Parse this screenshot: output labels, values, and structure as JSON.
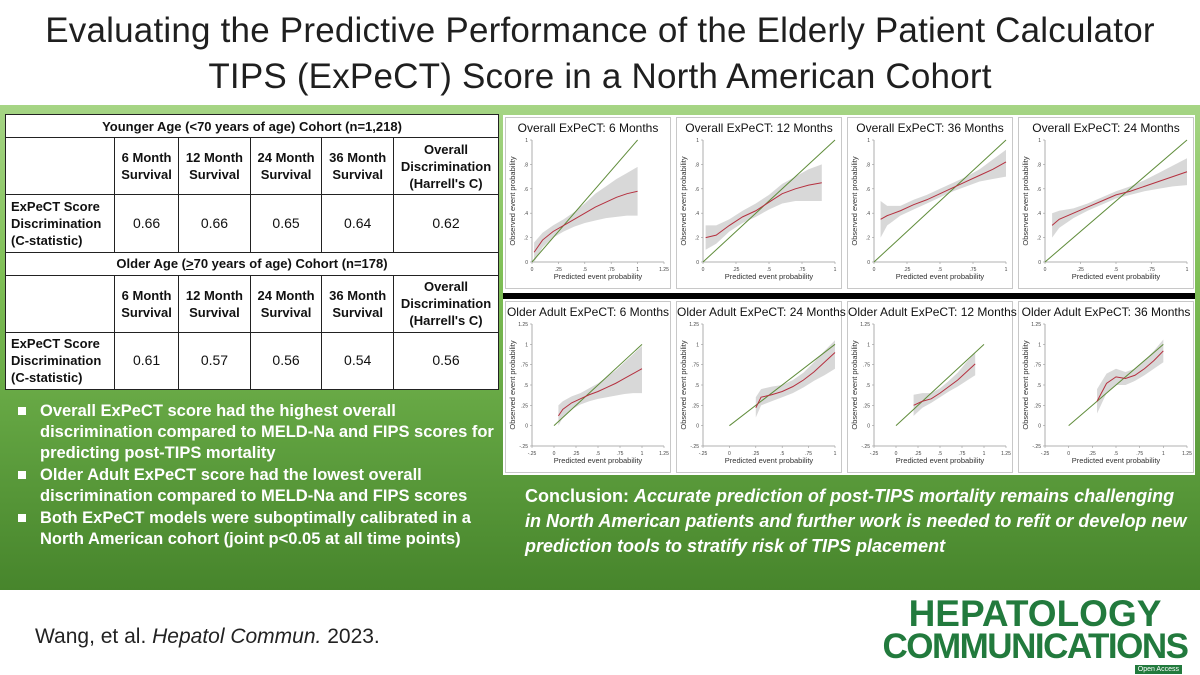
{
  "title_line1": "Evaluating the Predictive Performance of the Elderly Patient Calculator",
  "title_line2": "TIPS (ExPeCT) Score in a North American Cohort",
  "table": {
    "younger_caption": "Younger Age (<70 years of age) Cohort (n=1,218)",
    "older_caption_pre": "Older Age (",
    "older_caption_sym": ">",
    "older_caption_post": "70 years of age) Cohort (n=178)",
    "col_headers": [
      [
        "6 Month",
        "Survival"
      ],
      [
        "12 Month",
        "Survival"
      ],
      [
        "24 Month",
        "Survival"
      ],
      [
        "36 Month",
        "Survival"
      ],
      [
        "Overall",
        "Discrimination",
        "(Harrell's C)"
      ]
    ],
    "row_label": [
      "ExPeCT Score",
      "Discrimination",
      "(C-statistic)"
    ],
    "younger_values": [
      "0.66",
      "0.66",
      "0.65",
      "0.64",
      "0.62"
    ],
    "older_values": [
      "0.61",
      "0.57",
      "0.56",
      "0.54",
      "0.56"
    ]
  },
  "bullets": [
    "Overall ExPeCT score had the highest overall discrimination compared to MELD-Na and FIPS scores for predicting post-TIPS mortality",
    "Older Adult ExPeCT score had the lowest overall discrimination compared to MELD-Na and FIPS scores",
    "Both ExPeCT models were suboptimally calibrated in a North American cohort (joint p<0.05 at all time points)"
  ],
  "conclusion_label": "Conclusion:",
  "conclusion_text": "Accurate prediction of post-TIPS mortality remains challenging in North American patients and further work is needed to refit or develop new prediction tools to stratify risk of TIPS placement",
  "citation_authors": "Wang, et al. ",
  "citation_journal": "Hepatol Commun.",
  "citation_year": " 2023.",
  "logo_line1": "HEPATOLOGY",
  "logo_line2": "COMMUNICATIONS",
  "logo_badge": "Open Access",
  "colors": {
    "observed": "#b5303f",
    "reference": "#5f8c3a",
    "band": "#d8d8d8",
    "accent": "#227a3d"
  },
  "chart_data": [
    {
      "type": "line",
      "title": "Overall ExPeCT: 6 Months",
      "xlabel": "Predicted event probability",
      "ylabel": "Observed event probability",
      "xlim": [
        0,
        1.25
      ],
      "ylim": [
        0,
        1
      ],
      "xticks": [
        "0",
        ".25",
        ".5",
        ".75",
        "1",
        "1.25"
      ],
      "yticks": [
        "0",
        ".2",
        ".4",
        ".6",
        ".8",
        "1"
      ],
      "series": [
        {
          "x": [
            0.02,
            0.1,
            0.2,
            0.3,
            0.4,
            0.5,
            0.6,
            0.7,
            0.8,
            0.9,
            1.0
          ],
          "y": [
            0.08,
            0.18,
            0.25,
            0.3,
            0.35,
            0.4,
            0.45,
            0.49,
            0.53,
            0.56,
            0.58
          ],
          "lo": [
            0.0,
            0.12,
            0.2,
            0.25,
            0.29,
            0.32,
            0.34,
            0.36,
            0.37,
            0.38,
            0.38
          ],
          "hi": [
            0.16,
            0.24,
            0.3,
            0.35,
            0.41,
            0.48,
            0.56,
            0.62,
            0.68,
            0.73,
            0.78
          ]
        }
      ]
    },
    {
      "type": "line",
      "title": "Overall ExPeCT: 12 Months",
      "xlabel": "Predicted event probability",
      "ylabel": "Observed event probability",
      "xlim": [
        0,
        1
      ],
      "ylim": [
        0,
        1
      ],
      "xticks": [
        "0",
        ".25",
        ".5",
        ".75",
        "1"
      ],
      "yticks": [
        "0",
        ".2",
        ".4",
        ".6",
        ".8",
        "1"
      ],
      "series": [
        {
          "x": [
            0.02,
            0.1,
            0.2,
            0.3,
            0.4,
            0.5,
            0.6,
            0.7,
            0.8,
            0.9
          ],
          "y": [
            0.2,
            0.22,
            0.3,
            0.37,
            0.42,
            0.49,
            0.56,
            0.6,
            0.63,
            0.65
          ],
          "lo": [
            0.1,
            0.15,
            0.25,
            0.32,
            0.37,
            0.43,
            0.48,
            0.5,
            0.5,
            0.5
          ],
          "hi": [
            0.3,
            0.3,
            0.35,
            0.42,
            0.48,
            0.55,
            0.64,
            0.7,
            0.76,
            0.8
          ]
        }
      ]
    },
    {
      "type": "line",
      "title": "Overall ExPeCT: 36 Months",
      "xlabel": "Predicted event probability",
      "ylabel": "Observed event probability",
      "xlim": [
        0,
        1
      ],
      "ylim": [
        0,
        1
      ],
      "xticks": [
        "0",
        ".25",
        ".5",
        ".75",
        "1"
      ],
      "yticks": [
        "0",
        ".2",
        ".4",
        ".6",
        ".8",
        "1"
      ],
      "series": [
        {
          "x": [
            0.05,
            0.1,
            0.2,
            0.3,
            0.4,
            0.5,
            0.6,
            0.7,
            0.8,
            0.9,
            1.0
          ],
          "y": [
            0.35,
            0.38,
            0.42,
            0.47,
            0.51,
            0.56,
            0.61,
            0.66,
            0.71,
            0.76,
            0.82
          ],
          "lo": [
            0.2,
            0.3,
            0.38,
            0.43,
            0.48,
            0.53,
            0.58,
            0.62,
            0.66,
            0.68,
            0.7
          ],
          "hi": [
            0.5,
            0.46,
            0.46,
            0.51,
            0.55,
            0.6,
            0.65,
            0.7,
            0.76,
            0.84,
            0.92
          ]
        }
      ]
    },
    {
      "type": "line",
      "title": "Overall ExPeCT: 24 Months",
      "xlabel": "Predicted event probability",
      "ylabel": "Observed event probability",
      "xlim": [
        0,
        1
      ],
      "ylim": [
        0,
        1
      ],
      "xticks": [
        "0",
        ".25",
        ".5",
        ".75",
        "1"
      ],
      "yticks": [
        "0",
        ".2",
        ".4",
        ".6",
        ".8",
        "1"
      ],
      "series": [
        {
          "x": [
            0.05,
            0.1,
            0.2,
            0.3,
            0.4,
            0.5,
            0.6,
            0.7,
            0.8,
            0.9,
            1.0
          ],
          "y": [
            0.3,
            0.35,
            0.4,
            0.45,
            0.5,
            0.55,
            0.58,
            0.62,
            0.66,
            0.7,
            0.74
          ],
          "lo": [
            0.2,
            0.28,
            0.36,
            0.42,
            0.47,
            0.52,
            0.55,
            0.58,
            0.6,
            0.62,
            0.63
          ],
          "hi": [
            0.4,
            0.42,
            0.44,
            0.48,
            0.53,
            0.58,
            0.62,
            0.67,
            0.73,
            0.79,
            0.85
          ]
        }
      ]
    },
    {
      "type": "line",
      "title": "Older Adult ExPeCT: 6 Months",
      "xlabel": "Predicted event probability",
      "ylabel": "Observed event probability",
      "xlim": [
        -0.25,
        1.25
      ],
      "ylim": [
        -0.25,
        1.25
      ],
      "xticks": [
        "-.25",
        "0",
        ".25",
        ".5",
        ".75",
        "1",
        "1.25"
      ],
      "yticks": [
        "-.25",
        "0",
        ".25",
        ".5",
        ".75",
        "1",
        "1.25"
      ],
      "series": [
        {
          "x": [
            0.05,
            0.1,
            0.2,
            0.3,
            0.4,
            0.5,
            0.6,
            0.7,
            0.8,
            0.9,
            1.0
          ],
          "y": [
            0.12,
            0.2,
            0.28,
            0.33,
            0.38,
            0.42,
            0.47,
            0.52,
            0.58,
            0.64,
            0.7
          ],
          "lo": [
            0.0,
            0.1,
            0.2,
            0.26,
            0.3,
            0.33,
            0.35,
            0.37,
            0.39,
            0.4,
            0.4
          ],
          "hi": [
            0.25,
            0.3,
            0.36,
            0.4,
            0.46,
            0.52,
            0.6,
            0.68,
            0.78,
            0.88,
            0.98
          ]
        }
      ]
    },
    {
      "type": "line",
      "title": "Older Adult ExPeCT: 24 Months",
      "xlabel": "Predicted event probability",
      "ylabel": "Observed event probability",
      "xlim": [
        -0.25,
        1
      ],
      "ylim": [
        -0.25,
        1.25
      ],
      "xticks": [
        "-.25",
        "0",
        ".25",
        ".5",
        ".75",
        "1"
      ],
      "yticks": [
        "-.25",
        "0",
        ".25",
        ".5",
        ".75",
        "1",
        "1.25"
      ],
      "series": [
        {
          "x": [
            0.25,
            0.3,
            0.4,
            0.5,
            0.6,
            0.7,
            0.8,
            0.9,
            1.0
          ],
          "y": [
            0.22,
            0.35,
            0.38,
            0.42,
            0.48,
            0.56,
            0.66,
            0.78,
            0.9
          ],
          "lo": [
            0.1,
            0.25,
            0.3,
            0.35,
            0.4,
            0.47,
            0.55,
            0.62,
            0.7
          ],
          "hi": [
            0.35,
            0.45,
            0.48,
            0.5,
            0.56,
            0.65,
            0.78,
            0.92,
            1.05
          ]
        }
      ]
    },
    {
      "type": "line",
      "title": "Older Adult ExPeCT: 12 Months",
      "xlabel": "Predicted event probability",
      "ylabel": "Observed event probability",
      "xlim": [
        -0.25,
        1.25
      ],
      "ylim": [
        -0.25,
        1.25
      ],
      "xticks": [
        "-.25",
        "0",
        ".25",
        ".5",
        ".75",
        "1",
        "1.25"
      ],
      "yticks": [
        "-.25",
        "0",
        ".25",
        ".5",
        ".75",
        "1",
        "1.25"
      ],
      "series": [
        {
          "x": [
            0.2,
            0.3,
            0.4,
            0.5,
            0.6,
            0.7,
            0.8,
            0.9
          ],
          "y": [
            0.25,
            0.3,
            0.33,
            0.4,
            0.48,
            0.56,
            0.66,
            0.76
          ],
          "lo": [
            0.12,
            0.22,
            0.28,
            0.35,
            0.42,
            0.48,
            0.55,
            0.62
          ],
          "hi": [
            0.38,
            0.4,
            0.4,
            0.46,
            0.55,
            0.65,
            0.78,
            0.9
          ]
        }
      ]
    },
    {
      "type": "line",
      "title": "Older Adult ExPeCT: 36 Months",
      "xlabel": "Predicted event probability",
      "ylabel": "Observed event probability",
      "xlim": [
        -0.25,
        1.25
      ],
      "ylim": [
        -0.25,
        1.25
      ],
      "xticks": [
        "-.25",
        "0",
        ".25",
        ".5",
        ".75",
        "1",
        "1.25"
      ],
      "yticks": [
        "-.25",
        "0",
        ".25",
        ".5",
        ".75",
        "1",
        "1.25"
      ],
      "series": [
        {
          "x": [
            0.3,
            0.4,
            0.5,
            0.6,
            0.7,
            0.8,
            0.9,
            1.0
          ],
          "y": [
            0.3,
            0.52,
            0.6,
            0.58,
            0.62,
            0.7,
            0.8,
            0.92
          ],
          "lo": [
            0.15,
            0.4,
            0.5,
            0.5,
            0.55,
            0.62,
            0.7,
            0.78
          ],
          "hi": [
            0.45,
            0.64,
            0.7,
            0.66,
            0.7,
            0.8,
            0.92,
            1.06
          ]
        }
      ]
    }
  ]
}
